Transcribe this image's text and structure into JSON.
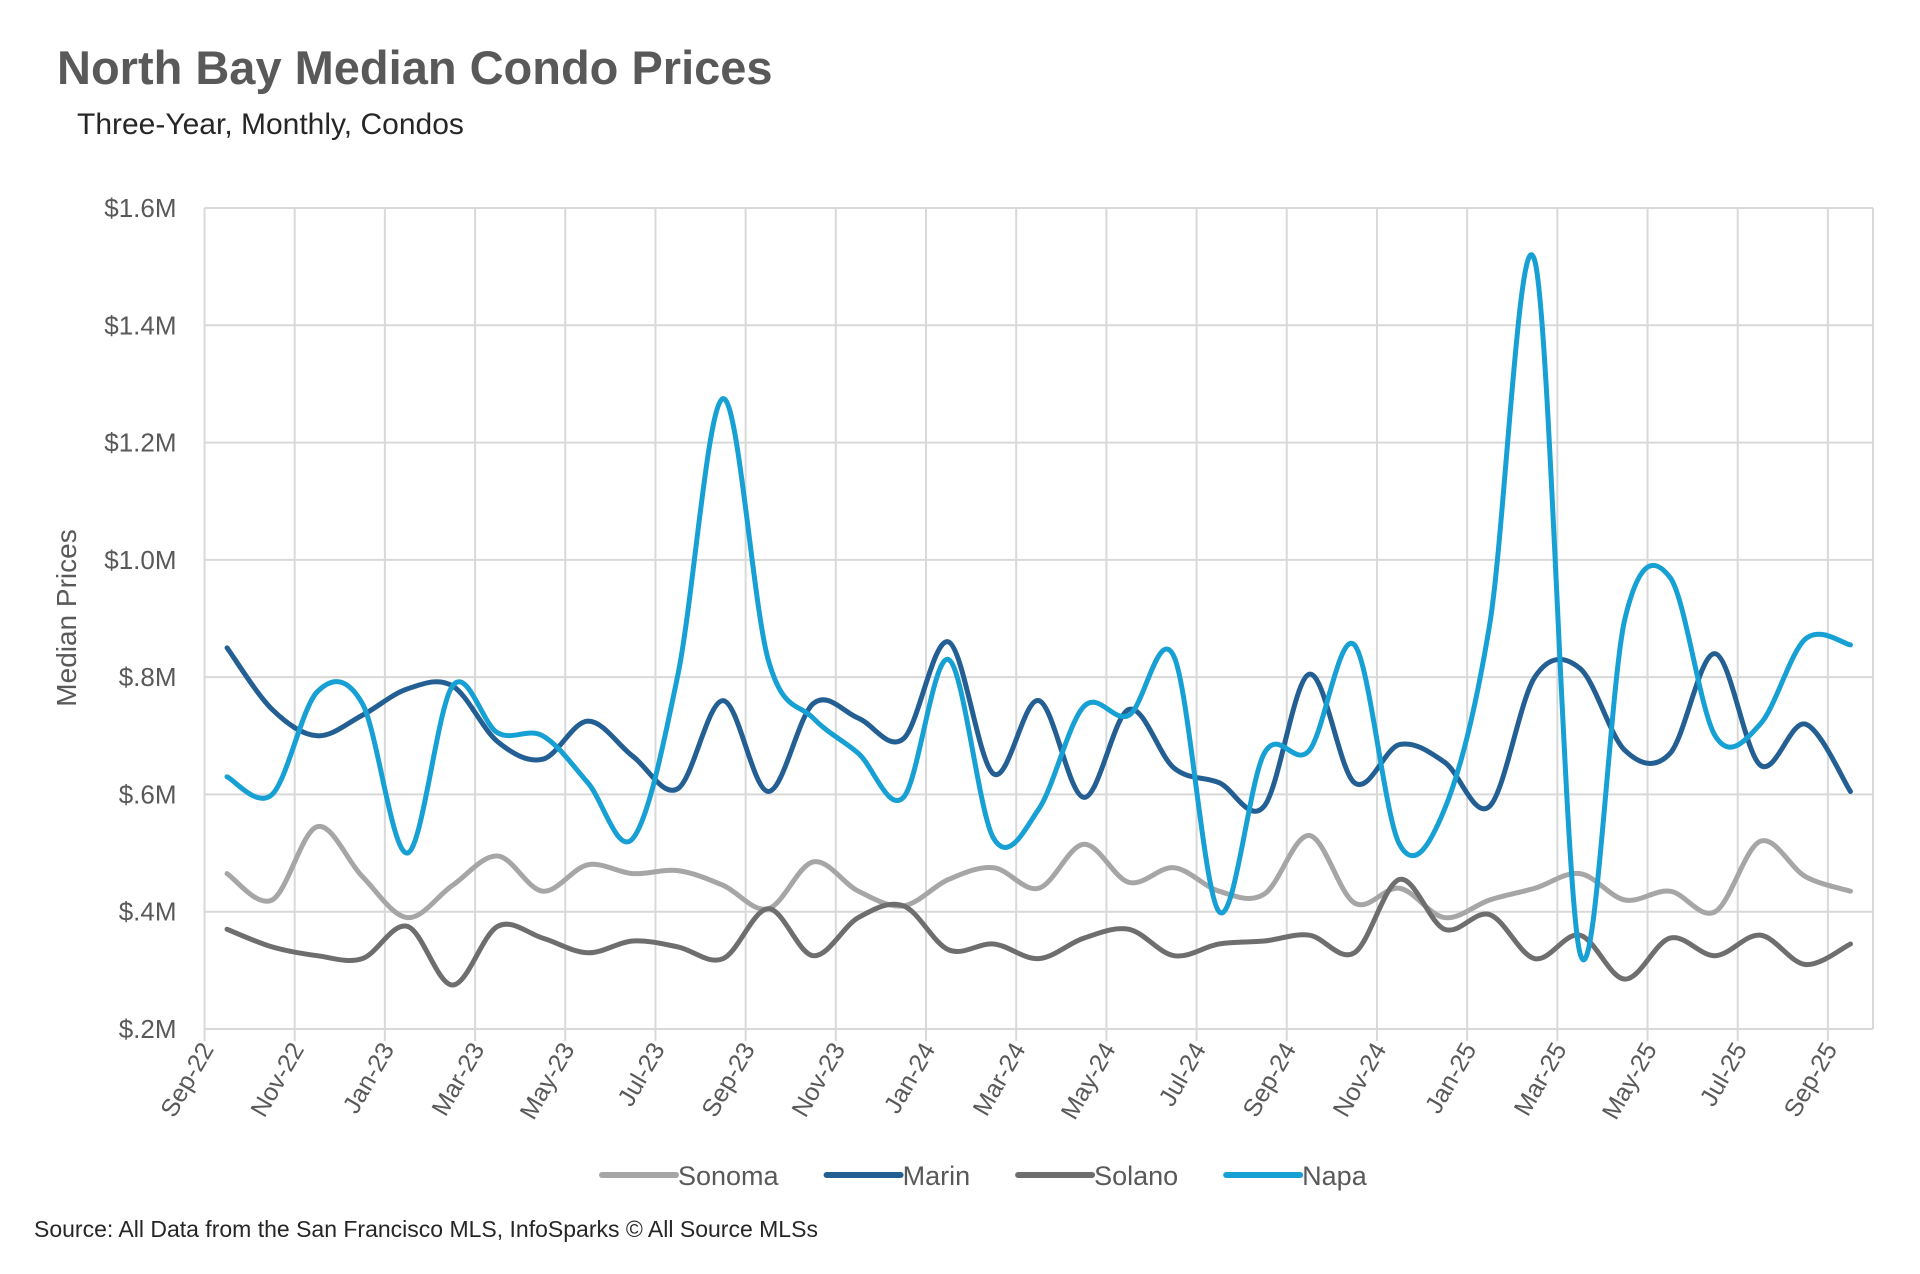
{
  "chart_data": {
    "type": "line",
    "title": "North Bay Median Condo Prices",
    "subtitle": "Three-Year, Monthly, Condos",
    "ylabel": "Median Prices",
    "xlabel": "",
    "ylim": [
      0.2,
      1.6
    ],
    "yunit": "$M",
    "yticks": [
      "$.2M",
      "$.4M",
      "$.6M",
      "$.8M",
      "$1.0M",
      "$1.2M",
      "$1.4M",
      "$1.6M"
    ],
    "grid": true,
    "smooth": true,
    "legend_position": "bottom",
    "categories": [
      "Sep-22",
      "Oct-22",
      "Nov-22",
      "Dec-22",
      "Jan-23",
      "Feb-23",
      "Mar-23",
      "Apr-23",
      "May-23",
      "Jun-23",
      "Jul-23",
      "Aug-23",
      "Sep-23",
      "Oct-23",
      "Nov-23",
      "Dec-23",
      "Jan-24",
      "Feb-24",
      "Mar-24",
      "Apr-24",
      "May-24",
      "Jun-24",
      "Jul-24",
      "Aug-24",
      "Sep-24",
      "Oct-24",
      "Nov-24",
      "Dec-24",
      "Jan-25",
      "Feb-25",
      "Mar-25",
      "Apr-25",
      "May-25",
      "Jun-25",
      "Jul-25",
      "Aug-25",
      "Sep-25"
    ],
    "xtick_labels": [
      "Sep-22",
      "Nov-22",
      "Jan-23",
      "Mar-23",
      "May-23",
      "Jul-23",
      "Sep-23",
      "Nov-23",
      "Jan-24",
      "Mar-24",
      "May-24",
      "Jul-24",
      "Sep-24",
      "Nov-24",
      "Jan-25",
      "Mar-25",
      "May-25",
      "Jul-25",
      "Sep-25"
    ],
    "series": [
      {
        "name": "Sonoma",
        "color": "#a6a6a6",
        "values": [
          0.465,
          0.42,
          0.545,
          0.46,
          0.39,
          0.445,
          0.495,
          0.435,
          0.48,
          0.465,
          0.47,
          0.445,
          0.405,
          0.485,
          0.435,
          0.41,
          0.455,
          0.475,
          0.44,
          0.515,
          0.45,
          0.475,
          0.435,
          0.43,
          0.53,
          0.415,
          0.44,
          0.39,
          0.42,
          0.44,
          0.465,
          0.42,
          0.435,
          0.4,
          0.52,
          0.46,
          0.435
        ]
      },
      {
        "name": "Marin",
        "color": "#235f93",
        "values": [
          0.85,
          0.745,
          0.7,
          0.735,
          0.78,
          0.785,
          0.69,
          0.66,
          0.725,
          0.665,
          0.61,
          0.76,
          0.605,
          0.755,
          0.73,
          0.695,
          0.86,
          0.635,
          0.76,
          0.595,
          0.745,
          0.645,
          0.62,
          0.58,
          0.805,
          0.62,
          0.685,
          0.655,
          0.58,
          0.8,
          0.815,
          0.675,
          0.67,
          0.84,
          0.65,
          0.72,
          0.605
        ]
      },
      {
        "name": "Solano",
        "color": "#6e6e6e",
        "values": [
          0.37,
          0.34,
          0.325,
          0.32,
          0.375,
          0.275,
          0.375,
          0.355,
          0.33,
          0.35,
          0.34,
          0.32,
          0.405,
          0.325,
          0.39,
          0.41,
          0.335,
          0.345,
          0.32,
          0.355,
          0.37,
          0.325,
          0.345,
          0.35,
          0.36,
          0.33,
          0.455,
          0.37,
          0.395,
          0.32,
          0.36,
          0.285,
          0.355,
          0.325,
          0.36,
          0.31,
          0.345
        ]
      },
      {
        "name": "Napa",
        "color": "#17a0d4",
        "values": [
          0.63,
          0.6,
          0.775,
          0.755,
          0.5,
          0.785,
          0.705,
          0.7,
          0.62,
          0.525,
          0.805,
          1.275,
          0.83,
          0.73,
          0.67,
          0.595,
          0.83,
          0.525,
          0.575,
          0.75,
          0.735,
          0.835,
          0.4,
          0.67,
          0.675,
          0.855,
          0.515,
          0.575,
          0.89,
          1.51,
          0.33,
          0.9,
          0.97,
          0.7,
          0.72,
          0.865,
          0.855
        ]
      }
    ]
  },
  "source": "Source: All Data from the San Francisco MLS, InfoSparks © All Source MLSs"
}
